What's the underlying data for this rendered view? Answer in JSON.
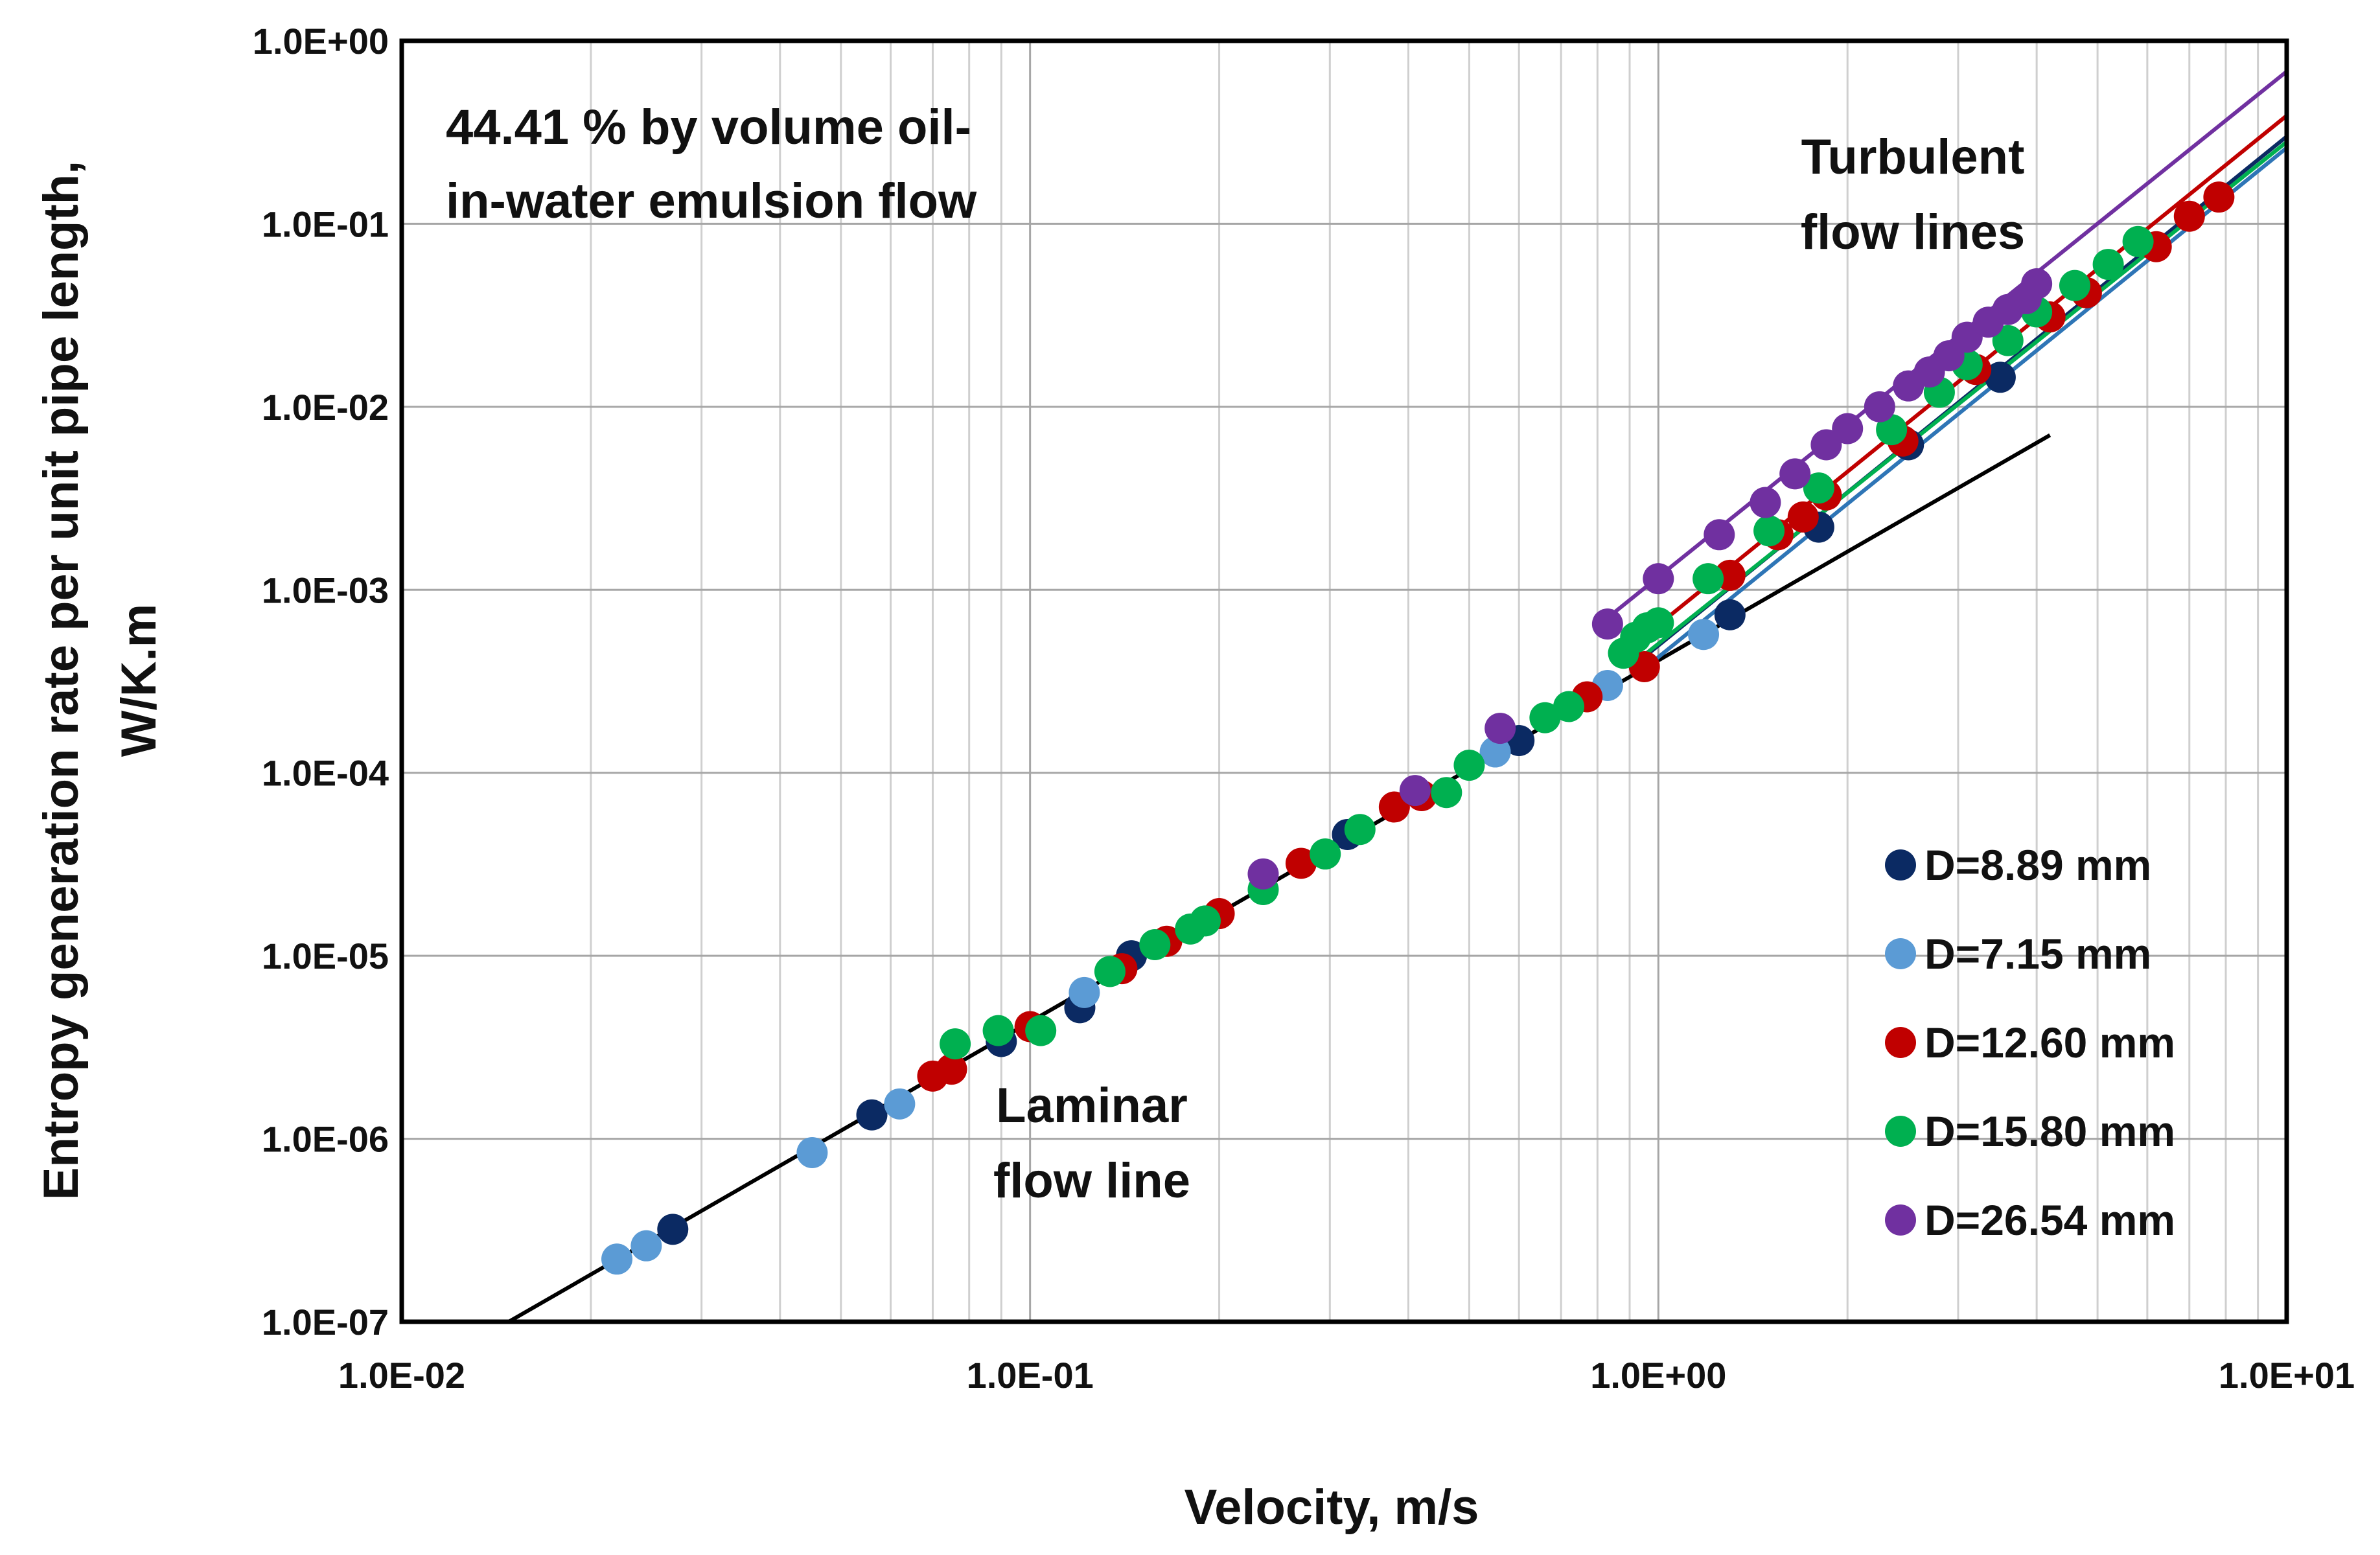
{
  "chart_data": {
    "type": "scatter",
    "x_scale": "log",
    "y_scale": "log",
    "xlim": [
      0.01,
      10
    ],
    "ylim": [
      1e-07,
      1
    ],
    "grid": true,
    "xlabel": "Velocity, m/s",
    "ylabel_line1": "Entropy generation rate per unit pipe length,",
    "ylabel_line2": "W/K.m",
    "x_ticks": [
      {
        "value": 0.01,
        "label": "1.0E-02"
      },
      {
        "value": 0.1,
        "label": "1.0E-01"
      },
      {
        "value": 1,
        "label": "1.0E+00"
      },
      {
        "value": 10,
        "label": "1.0E+01"
      }
    ],
    "y_ticks": [
      {
        "value": 1,
        "label": "1.0E+00"
      },
      {
        "value": 0.1,
        "label": "1.0E-01"
      },
      {
        "value": 0.01,
        "label": "1.0E-02"
      },
      {
        "value": 0.001,
        "label": "1.0E-03"
      },
      {
        "value": 0.0001,
        "label": "1.0E-04"
      },
      {
        "value": 1e-05,
        "label": "1.0E-05"
      },
      {
        "value": 1e-06,
        "label": "1.0E-06"
      },
      {
        "value": 1e-07,
        "label": "1.0E-07"
      }
    ],
    "annotations": {
      "title_line1": "44.41 % by volume oil-",
      "title_line2": "in-water emulsion flow",
      "turbulent_line1": "Turbulent",
      "turbulent_line2": "flow lines",
      "laminar_line1": "Laminar",
      "laminar_line2": "flow line"
    },
    "legend_position": "bottom-right",
    "series": [
      {
        "name": "D=8.89 mm",
        "color": "#0b2a63",
        "points": [
          [
            0.027,
            3.2e-07
          ],
          [
            0.056,
            1.35e-06
          ],
          [
            0.09,
            3.4e-06
          ],
          [
            0.12,
            5.2e-06
          ],
          [
            0.145,
            1e-05
          ],
          [
            0.32,
            4.6e-05
          ],
          [
            0.6,
            0.00015
          ],
          [
            1.3,
            0.00073
          ],
          [
            1.8,
            0.0022
          ],
          [
            2.5,
            0.0062
          ],
          [
            3.5,
            0.0145
          ]
        ]
      },
      {
        "name": "D=7.15 mm",
        "color": "#5b9bd5",
        "points": [
          [
            0.022,
            2.2e-07
          ],
          [
            0.0245,
            2.6e-07
          ],
          [
            0.045,
            8.4e-07
          ],
          [
            0.062,
            1.55e-06
          ],
          [
            0.122,
            6.3e-06
          ],
          [
            0.55,
            0.00013
          ],
          [
            0.83,
            0.0003
          ],
          [
            1.18,
            0.00057
          ]
        ]
      },
      {
        "name": "D=12.60 mm",
        "color": "#c00000",
        "points": [
          [
            0.07,
            2.2e-06
          ],
          [
            0.075,
            2.4e-06
          ],
          [
            0.1,
            4.1e-06
          ],
          [
            0.14,
            8.5e-06
          ],
          [
            0.165,
            1.2e-05
          ],
          [
            0.2,
            1.7e-05
          ],
          [
            0.27,
            3.2e-05
          ],
          [
            0.38,
            6.5e-05
          ],
          [
            0.42,
            7.5e-05
          ],
          [
            0.77,
            0.00026
          ],
          [
            0.95,
            0.00038
          ],
          [
            1.3,
            0.0012
          ],
          [
            1.55,
            0.002
          ],
          [
            1.7,
            0.0025
          ],
          [
            1.85,
            0.0033
          ],
          [
            2.45,
            0.0065
          ],
          [
            3.2,
            0.016
          ],
          [
            4.2,
            0.031
          ],
          [
            4.8,
            0.042
          ],
          [
            6.2,
            0.075
          ],
          [
            7.0,
            0.11
          ],
          [
            7.8,
            0.14
          ]
        ]
      },
      {
        "name": "D=15.80 mm",
        "color": "#00b050",
        "points": [
          [
            0.076,
            3.3e-06
          ],
          [
            0.089,
            3.9e-06
          ],
          [
            0.104,
            3.9e-06
          ],
          [
            0.134,
            8.2e-06
          ],
          [
            0.158,
            1.15e-05
          ],
          [
            0.18,
            1.4e-05
          ],
          [
            0.19,
            1.55e-05
          ],
          [
            0.235,
            2.3e-05
          ],
          [
            0.295,
            3.6e-05
          ],
          [
            0.335,
            4.9e-05
          ],
          [
            0.46,
            7.8e-05
          ],
          [
            0.5,
            0.00011
          ],
          [
            0.66,
            0.0002
          ],
          [
            0.72,
            0.00023
          ],
          [
            0.88,
            0.00045
          ],
          [
            0.92,
            0.00055
          ],
          [
            0.96,
            0.00062
          ],
          [
            1.0,
            0.00066
          ],
          [
            1.2,
            0.00115
          ],
          [
            1.5,
            0.0021
          ],
          [
            1.8,
            0.0036
          ],
          [
            2.35,
            0.0075
          ],
          [
            2.8,
            0.012
          ],
          [
            3.1,
            0.017
          ],
          [
            3.6,
            0.023
          ],
          [
            4.0,
            0.033
          ],
          [
            4.6,
            0.046
          ],
          [
            5.2,
            0.06
          ],
          [
            5.8,
            0.08
          ]
        ]
      },
      {
        "name": "D=26.54 mm",
        "color": "#7030a0",
        "points": [
          [
            0.235,
            2.8e-05
          ],
          [
            0.41,
            8e-05
          ],
          [
            0.56,
            0.000175
          ],
          [
            0.83,
            0.00065
          ],
          [
            1.0,
            0.00115
          ],
          [
            1.25,
            0.002
          ],
          [
            1.48,
            0.003
          ],
          [
            1.65,
            0.0043
          ],
          [
            1.85,
            0.0062
          ],
          [
            2.0,
            0.0076
          ],
          [
            2.25,
            0.01
          ],
          [
            2.5,
            0.013
          ],
          [
            2.7,
            0.0155
          ],
          [
            2.9,
            0.019
          ],
          [
            3.1,
            0.024
          ],
          [
            3.35,
            0.029
          ],
          [
            3.6,
            0.034
          ],
          [
            3.85,
            0.039
          ],
          [
            4.0,
            0.047
          ]
        ]
      }
    ],
    "fit_lines": [
      {
        "name": "Laminar flow line",
        "color": "#000000",
        "points": [
          [
            0.0148,
            1e-07
          ],
          [
            4.2,
            0.007
          ]
        ]
      },
      {
        "name": "Turbulent D=26.54 mm",
        "color": "#7030a0",
        "points": [
          [
            0.85,
            0.00075
          ],
          [
            10,
            0.68
          ]
        ]
      },
      {
        "name": "Turbulent D=12.60 mm",
        "color": "#c00000",
        "points": [
          [
            0.88,
            0.00045
          ],
          [
            10,
            0.39
          ]
        ]
      },
      {
        "name": "Turbulent D=8.89 mm",
        "color": "#0b2a63",
        "points": [
          [
            0.9,
            0.00037
          ],
          [
            10,
            0.3
          ]
        ]
      },
      {
        "name": "Turbulent D=15.80 mm",
        "color": "#00b050",
        "points": [
          [
            0.9,
            0.00038
          ],
          [
            10,
            0.28
          ]
        ]
      },
      {
        "name": "Turbulent D=7.15 mm",
        "color": "#2e75b6",
        "points": [
          [
            0.92,
            0.00034
          ],
          [
            10,
            0.26
          ]
        ]
      }
    ]
  }
}
